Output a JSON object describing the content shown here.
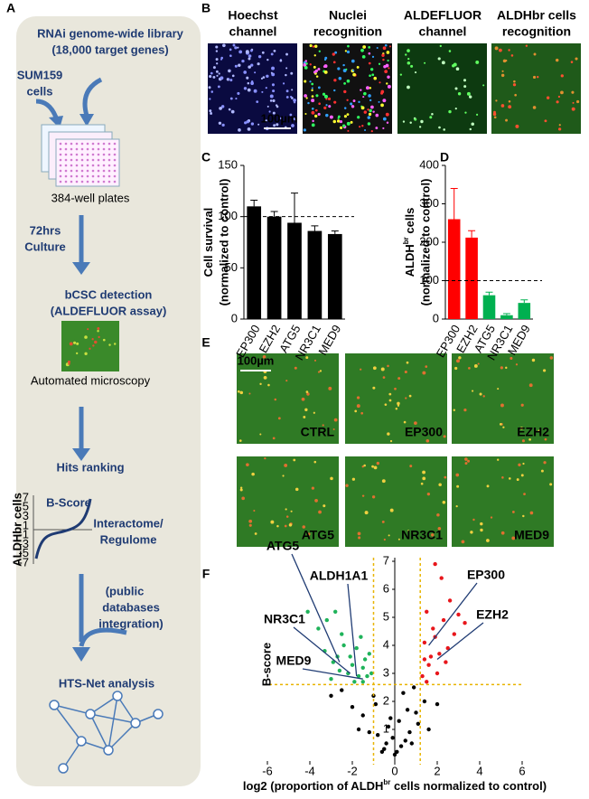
{
  "panel_letters": [
    "A",
    "B",
    "C",
    "D",
    "E",
    "F"
  ],
  "workflow": {
    "library": [
      "RNAi genome-wide library",
      "(18,000 target genes)"
    ],
    "cells": [
      "SUM159",
      "cells"
    ],
    "plates": "384-well plates",
    "culture": [
      "72hrs",
      "Culture"
    ],
    "detection": [
      "bCSC detection",
      "(ALDEFLUOR assay)"
    ],
    "microscopy": "Automated microscopy",
    "ranking": "Hits ranking",
    "bscore_title": "B-Score",
    "bscore_y_label": "ALDHbr cells",
    "bscore_yticks": [
      7,
      5,
      3,
      1,
      -1,
      -3,
      -5,
      -7
    ],
    "interactome": [
      "Interactome/",
      "Regulome"
    ],
    "databases": [
      "(public",
      "databases",
      "integration)"
    ],
    "network": "HTS-Net analysis"
  },
  "microscopy_b": {
    "titles": [
      [
        "Hoechst",
        "channel"
      ],
      [
        "Nuclei",
        "recognition"
      ],
      [
        "ALDEFLUOR",
        "channel"
      ],
      [
        "ALDHbr cells",
        "recognition"
      ]
    ],
    "scale_bar": "100µm"
  },
  "microscopy_e": {
    "labels": [
      "CTRL",
      "EP300",
      "EZH2",
      "ATG5",
      "NR3C1",
      "MED9"
    ],
    "scale_bar": "100µm"
  },
  "chart_data": [
    {
      "type": "bar",
      "y_label": [
        "Cell survival",
        "(normalized to control)"
      ],
      "categories": [
        "EP300",
        "EZH2",
        "ATG5",
        "NR3C1",
        "MED9"
      ],
      "values": [
        110,
        100,
        94,
        86,
        83
      ],
      "errors": [
        6,
        5,
        29,
        5,
        3
      ],
      "colors": [
        "#000000",
        "#000000",
        "#000000",
        "#000000",
        "#000000"
      ],
      "ylim": [
        0,
        150
      ],
      "yticks": [
        0,
        50,
        100,
        150
      ],
      "reference_line": 100
    },
    {
      "type": "bar",
      "y_label": [
        "ALDH",
        "br",
        " cells",
        "(normalized to control)"
      ],
      "categories": [
        "EP300",
        "EZH2",
        "ATG5",
        "NR3C1",
        "MED9"
      ],
      "values": [
        260,
        212,
        62,
        10,
        42
      ],
      "errors": [
        80,
        18,
        8,
        4,
        8
      ],
      "colors": [
        "#ff0000",
        "#ff0000",
        "#00b050",
        "#00b050",
        "#00b050"
      ],
      "ylim": [
        0,
        400
      ],
      "yticks": [
        0,
        100,
        200,
        300,
        400
      ],
      "reference_line": 100
    },
    {
      "type": "scatter",
      "y_label": "B-score",
      "x_label": [
        "log2 (proportion of ALDH",
        "br",
        " cells normalized to control)"
      ],
      "xlim": [
        -6,
        6
      ],
      "ylim": [
        0,
        7
      ],
      "xticks": [
        -6,
        -4,
        -2,
        0,
        2,
        4,
        6
      ],
      "yticks": [
        1,
        2,
        3,
        4,
        5,
        6,
        7
      ],
      "thresholds_x": [
        -1,
        1.2
      ],
      "threshold_y": 2.6,
      "series": [
        {
          "color": "#000000",
          "x": [
            -1.5,
            -0.8,
            -0.5,
            0,
            0.3,
            0.7,
            1.0,
            -1.0,
            -0.3,
            0.5,
            1.4,
            -2.0,
            -0.6,
            0.2,
            0.8,
            -1.2,
            -0.1,
            0.4,
            1.1,
            -2.5,
            -0.9,
            0.6,
            -0.4,
            0.1,
            1.6,
            -1.7,
            0.9,
            -0.2,
            2.0,
            -3.0
          ],
          "y": [
            1.5,
            0.8,
            0.3,
            0.1,
            0.4,
            0.9,
            1.6,
            2.2,
            1.1,
            0.6,
            2.0,
            1.8,
            0.2,
            1.3,
            0.5,
            0.9,
            0.7,
            2.3,
            1.2,
            2.4,
            1.9,
            1.7,
            0.5,
            0.2,
            1.0,
            1.0,
            2.5,
            1.4,
            1.9,
            2.2
          ]
        },
        {
          "color": "#1fb35a",
          "x": [
            -3.2,
            -2.8,
            -2.5,
            -2.1,
            -1.8,
            -1.5,
            -1.3,
            -2.9,
            -3.6,
            -2.2,
            -1.6,
            -1.2,
            -2.6,
            -3.0,
            -1.9,
            -1.4,
            -2.4,
            -3.3,
            -1.7,
            -2.0,
            -4.1,
            -1.1,
            -2.7,
            -1.5
          ],
          "y": [
            4.9,
            5.2,
            4.4,
            3.6,
            3.9,
            3.2,
            2.9,
            3.4,
            4.6,
            3.0,
            4.3,
            3.7,
            3.1,
            2.8,
            2.7,
            3.5,
            4.0,
            3.8,
            2.9,
            3.3,
            5.2,
            3.0,
            3.6,
            2.7
          ]
        },
        {
          "color": "#e8161b",
          "x": [
            1.9,
            2.2,
            1.5,
            2.6,
            1.8,
            1.4,
            2.3,
            3.0,
            2.1,
            1.6,
            2.8,
            1.3,
            2.5,
            1.7,
            2.0,
            3.3,
            1.5,
            2.4,
            1.9,
            1.4
          ],
          "y": [
            6.9,
            6.4,
            5.2,
            5.6,
            4.6,
            4.1,
            4.9,
            5.1,
            3.7,
            3.3,
            4.4,
            2.9,
            3.9,
            3.6,
            3.0,
            4.8,
            2.7,
            3.4,
            4.3,
            3.5
          ]
        }
      ],
      "annotations": [
        {
          "label": "ATG5",
          "x": -2.6,
          "y": 3.4,
          "color": "#1fb35a"
        },
        {
          "label": "ALDH1A1",
          "x": -1.8,
          "y": 2.9,
          "color": "#1fb35a"
        },
        {
          "label": "NR3C1",
          "x": -2.1,
          "y": 3.0,
          "color": "#1fb35a"
        },
        {
          "label": "MED9",
          "x": -1.5,
          "y": 2.8,
          "color": "#1fb35a"
        },
        {
          "label": "EP300",
          "x": 1.6,
          "y": 4.0,
          "color": "#e8161b"
        },
        {
          "label": "EZH2",
          "x": 2.0,
          "y": 3.5,
          "color": "#e8161b"
        }
      ]
    }
  ]
}
